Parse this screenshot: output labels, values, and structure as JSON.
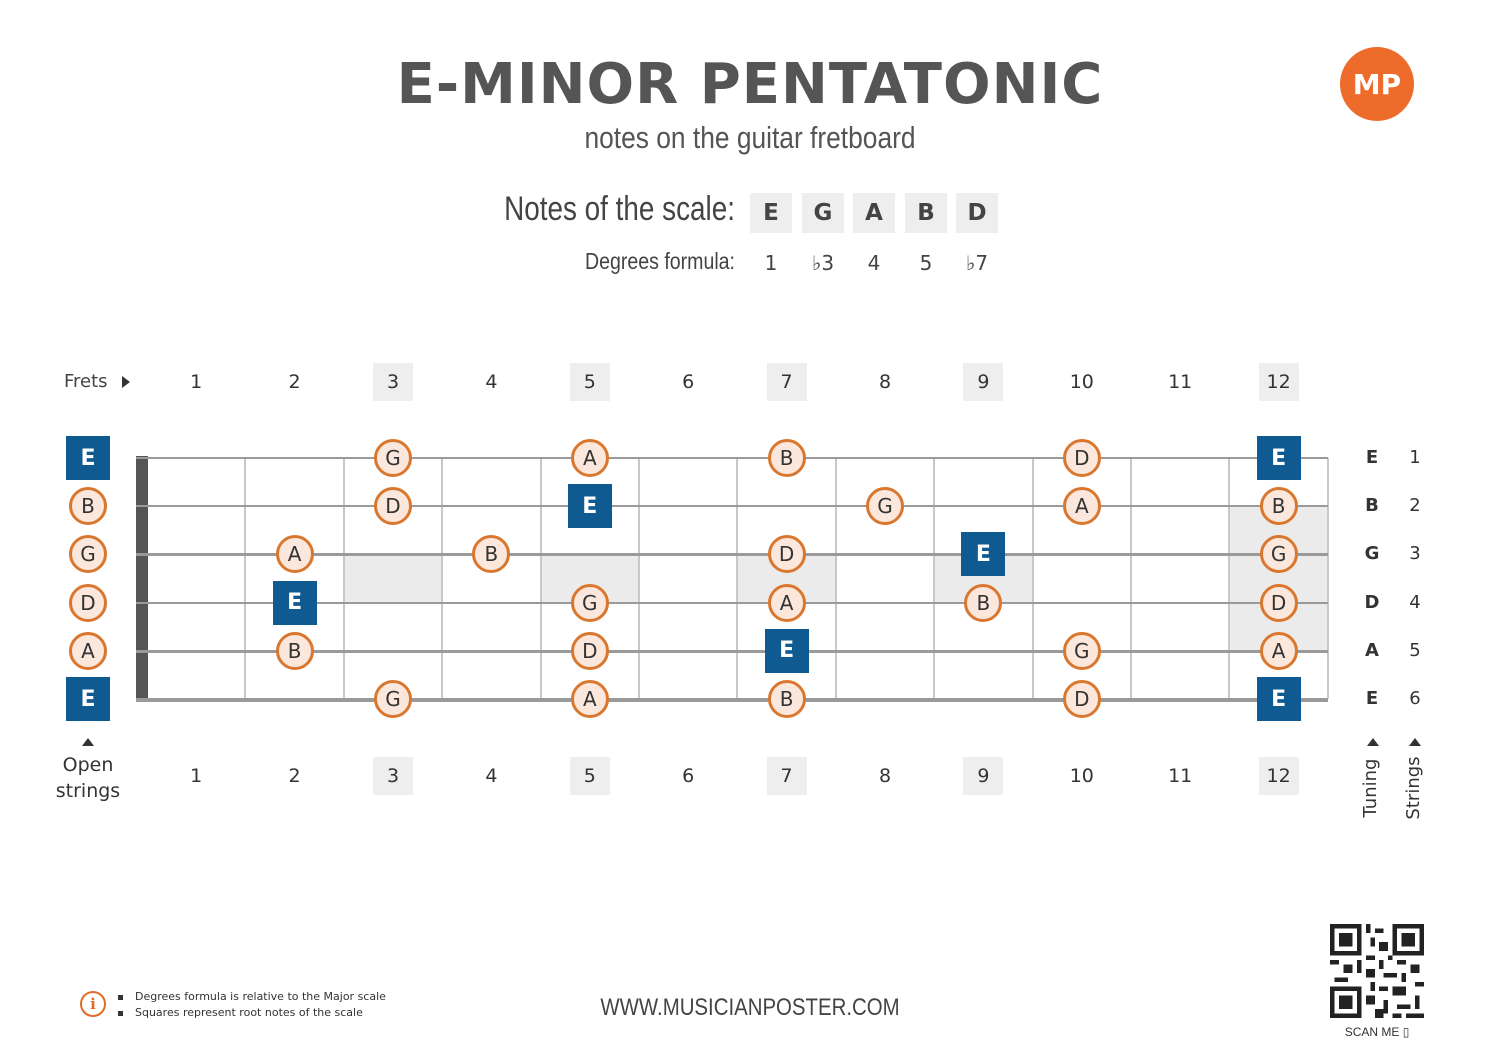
{
  "header": {
    "title": "E-MINOR PENTATONIC",
    "subtitle": "notes on the guitar fretboard",
    "logo_text": "MP"
  },
  "scale": {
    "notes_label": "Notes of the scale:",
    "notes": [
      "E",
      "G",
      "A",
      "B",
      "D"
    ],
    "degrees_label": "Degrees formula:",
    "degrees": [
      "1",
      "♭3",
      "4",
      "5",
      "♭7"
    ]
  },
  "fretboard": {
    "frets_label": "Frets",
    "fret_numbers": [
      "1",
      "2",
      "3",
      "4",
      "5",
      "6",
      "7",
      "8",
      "9",
      "10",
      "11",
      "12"
    ],
    "marked_frets": [
      3,
      5,
      7,
      9,
      12
    ],
    "open_strings_label_line1": "Open",
    "open_strings_label_line2": "strings",
    "tuning_label": "Tuning",
    "strings_label": "Strings",
    "strings": [
      {
        "number": "1",
        "tuning": "E",
        "open": {
          "note": "E",
          "root": true
        },
        "notes": [
          {
            "fret": 3,
            "note": "G"
          },
          {
            "fret": 5,
            "note": "A"
          },
          {
            "fret": 7,
            "note": "B"
          },
          {
            "fret": 10,
            "note": "D"
          },
          {
            "fret": 12,
            "note": "E",
            "root": true
          }
        ]
      },
      {
        "number": "2",
        "tuning": "B",
        "open": {
          "note": "B",
          "root": false
        },
        "notes": [
          {
            "fret": 3,
            "note": "D"
          },
          {
            "fret": 5,
            "note": "E",
            "root": true
          },
          {
            "fret": 8,
            "note": "G"
          },
          {
            "fret": 10,
            "note": "A"
          },
          {
            "fret": 12,
            "note": "B"
          }
        ]
      },
      {
        "number": "3",
        "tuning": "G",
        "open": {
          "note": "G",
          "root": false
        },
        "notes": [
          {
            "fret": 2,
            "note": "A"
          },
          {
            "fret": 4,
            "note": "B"
          },
          {
            "fret": 7,
            "note": "D"
          },
          {
            "fret": 9,
            "note": "E",
            "root": true
          },
          {
            "fret": 12,
            "note": "G"
          }
        ]
      },
      {
        "number": "4",
        "tuning": "D",
        "open": {
          "note": "D",
          "root": false
        },
        "notes": [
          {
            "fret": 2,
            "note": "E",
            "root": true
          },
          {
            "fret": 5,
            "note": "G"
          },
          {
            "fret": 7,
            "note": "A"
          },
          {
            "fret": 9,
            "note": "B"
          },
          {
            "fret": 12,
            "note": "D"
          }
        ]
      },
      {
        "number": "5",
        "tuning": "A",
        "open": {
          "note": "A",
          "root": false
        },
        "notes": [
          {
            "fret": 2,
            "note": "B"
          },
          {
            "fret": 5,
            "note": "D"
          },
          {
            "fret": 7,
            "note": "E",
            "root": true
          },
          {
            "fret": 10,
            "note": "G"
          },
          {
            "fret": 12,
            "note": "A"
          }
        ]
      },
      {
        "number": "6",
        "tuning": "E",
        "open": {
          "note": "E",
          "root": true
        },
        "notes": [
          {
            "fret": 3,
            "note": "G"
          },
          {
            "fret": 5,
            "note": "A"
          },
          {
            "fret": 7,
            "note": "B"
          },
          {
            "fret": 10,
            "note": "D"
          },
          {
            "fret": 12,
            "note": "E",
            "root": true
          }
        ]
      }
    ]
  },
  "footer": {
    "info_icon": "info-icon",
    "info_lines": [
      "Degrees formula is relative to the Major scale",
      "Squares represent root notes of the scale"
    ],
    "website": "WWW.MUSICIANPOSTER.COM",
    "scan_me": "SCAN ME ▯"
  },
  "colors": {
    "accent_orange": "#d9772e",
    "note_fill": "#fbe7dc",
    "root_blue": "#0f5a91",
    "logo_orange": "#ee6c2b"
  }
}
